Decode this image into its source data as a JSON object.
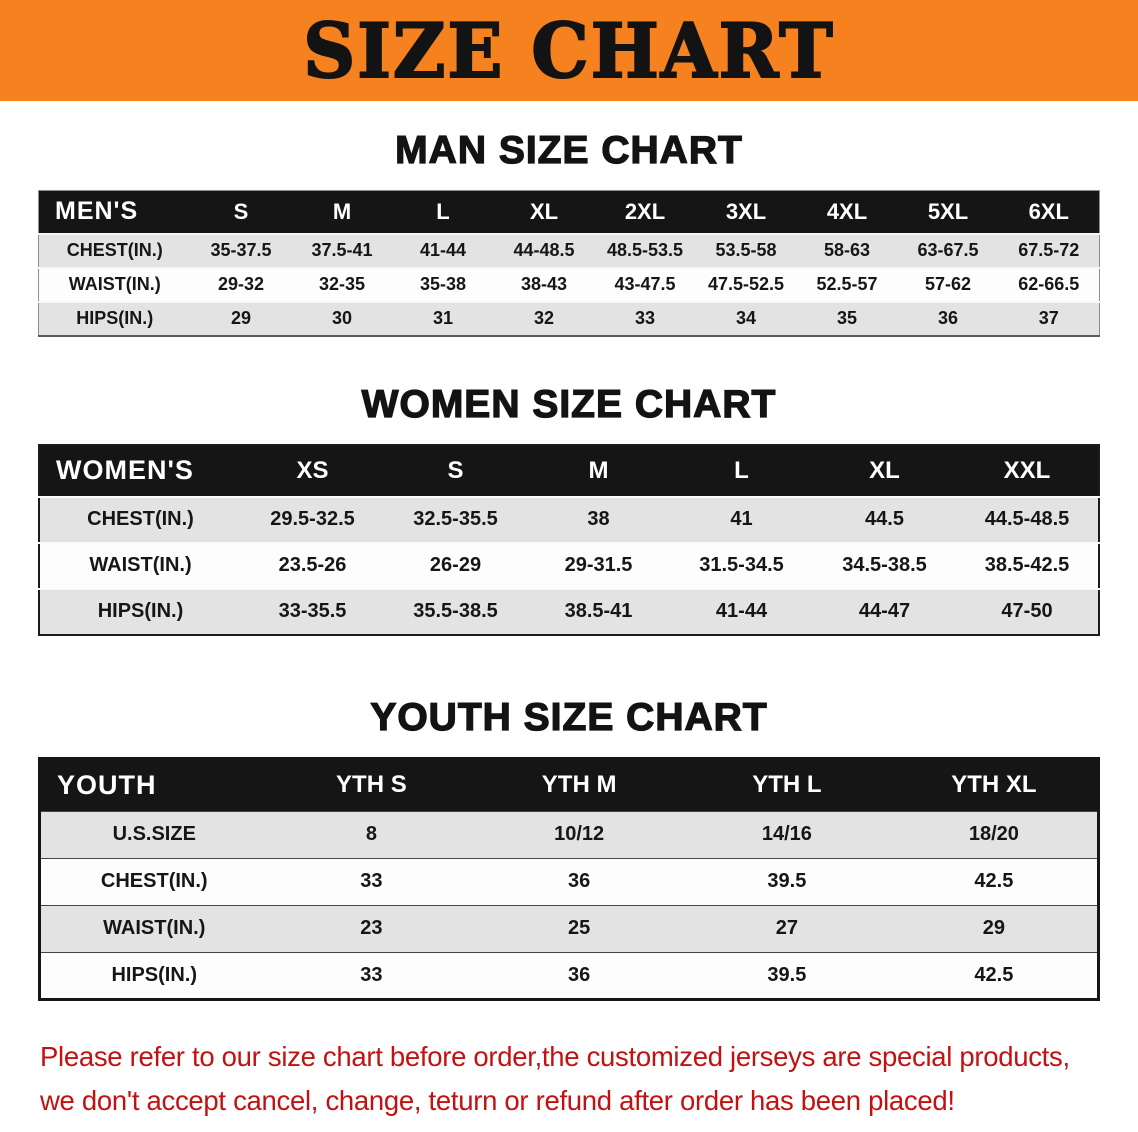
{
  "banner": {
    "title": "SIZE CHART"
  },
  "colors": {
    "banner_orange": "#F5821E",
    "table_header_black": "#151515",
    "note_red": "#C31111",
    "row_stripe_gray": "#E3E3E3"
  },
  "chart_data": [
    {
      "type": "table",
      "id": "men",
      "title": "MAN SIZE CHART",
      "corner_label": "MEN'S",
      "columns": [
        "S",
        "M",
        "L",
        "XL",
        "2XL",
        "3XL",
        "4XL",
        "5XL",
        "6XL"
      ],
      "rows": [
        {
          "label": "CHEST(IN.)",
          "values": [
            "35-37.5",
            "37.5-41",
            "41-44",
            "44-48.5",
            "48.5-53.5",
            "53.5-58",
            "58-63",
            "63-67.5",
            "67.5-72"
          ]
        },
        {
          "label": "WAIST(IN.)",
          "values": [
            "29-32",
            "32-35",
            "35-38",
            "38-43",
            "43-47.5",
            "47.5-52.5",
            "52.5-57",
            "57-62",
            "62-66.5"
          ]
        },
        {
          "label": "HIPS(IN.)",
          "values": [
            "29",
            "30",
            "31",
            "32",
            "33",
            "34",
            "35",
            "36",
            "37"
          ]
        }
      ]
    },
    {
      "type": "table",
      "id": "women",
      "title": "WOMEN SIZE CHART",
      "corner_label": "WOMEN'S",
      "columns": [
        "XS",
        "S",
        "M",
        "L",
        "XL",
        "XXL"
      ],
      "rows": [
        {
          "label": "CHEST(IN.)",
          "values": [
            "29.5-32.5",
            "32.5-35.5",
            "38",
            "41",
            "44.5",
            "44.5-48.5"
          ]
        },
        {
          "label": "WAIST(IN.)",
          "values": [
            "23.5-26",
            "26-29",
            "29-31.5",
            "31.5-34.5",
            "34.5-38.5",
            "38.5-42.5"
          ]
        },
        {
          "label": "HIPS(IN.)",
          "values": [
            "33-35.5",
            "35.5-38.5",
            "38.5-41",
            "41-44",
            "44-47",
            "47-50"
          ]
        }
      ]
    },
    {
      "type": "table",
      "id": "youth",
      "title": "YOUTH SIZE CHART",
      "corner_label": "YOUTH",
      "columns": [
        "YTH S",
        "YTH M",
        "YTH L",
        "YTH XL"
      ],
      "rows": [
        {
          "label": "U.S.SIZE",
          "values": [
            "8",
            "10/12",
            "14/16",
            "18/20"
          ]
        },
        {
          "label": "CHEST(IN.)",
          "values": [
            "33",
            "36",
            "39.5",
            "42.5"
          ]
        },
        {
          "label": "WAIST(IN.)",
          "values": [
            "23",
            "25",
            "27",
            "29"
          ]
        },
        {
          "label": "HIPS(IN.)",
          "values": [
            "33",
            "36",
            "39.5",
            "42.5"
          ]
        }
      ]
    }
  ],
  "footer_note": {
    "line1": "Please refer to our size chart before order,the customized jerseys are special products,",
    "line2": "we don't accept cancel, change, teturn or refund after order has been placed!"
  }
}
